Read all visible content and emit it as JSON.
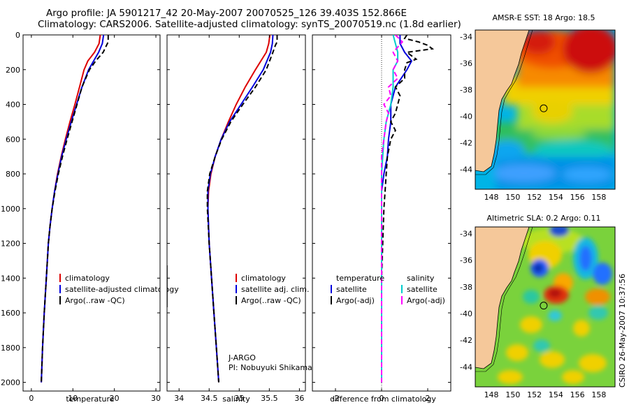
{
  "header": {
    "title_line1": "Argo profile: JA 5901217_42 20-May-2007 20070525_126 39.403S 152.866E",
    "title_line2": "Climatology: CARS2006. Satellite-adjusted climatology: synTS_20070519.nc (1.8d earlier)"
  },
  "credits": {
    "program": "J-ARGO",
    "pi": "PI: Nobuyuki Shikama",
    "stamp": "CSIRO 26-May-2007 10:37:56"
  },
  "colors": {
    "climatology": "#dd0000",
    "satellite": "#0000dd",
    "argo": "#000000",
    "temp_satellite": "#00cccc",
    "salinity_argo": "#ff00ff",
    "land": "#f5c89a"
  },
  "chart_data": [
    {
      "type": "line",
      "id": "temperature",
      "xlabel": "temperature",
      "ylabel": "",
      "xlim": [
        -2,
        31
      ],
      "ylim": [
        2050,
        0
      ],
      "x_ticks": [
        0,
        10,
        20,
        30
      ],
      "y_ticks": [
        0,
        200,
        400,
        600,
        800,
        1000,
        1200,
        1400,
        1600,
        1800,
        2000
      ],
      "legend": [
        "climatology",
        "satellite-adjusted climatology",
        "Argo(..raw -QC)"
      ],
      "series": [
        {
          "name": "climatology",
          "color": "#dd0000",
          "style": "solid",
          "depth": [
            0,
            50,
            100,
            150,
            200,
            300,
            400,
            500,
            600,
            700,
            800,
            900,
            1000,
            1100,
            1200,
            1400,
            1600,
            1800,
            2000
          ],
          "values": [
            16.6,
            16.3,
            15.2,
            13.6,
            12.7,
            11.6,
            10.5,
            9.3,
            8.2,
            7.2,
            6.3,
            5.6,
            5.0,
            4.5,
            4.1,
            3.6,
            3.1,
            2.7,
            2.4
          ]
        },
        {
          "name": "satellite-adjusted climatology",
          "color": "#0000dd",
          "style": "solid",
          "depth": [
            0,
            50,
            100,
            150,
            200,
            300,
            400,
            500,
            600,
            700,
            800,
            900,
            1000,
            1100,
            1200,
            1400,
            1600,
            1800,
            2000
          ],
          "values": [
            17.4,
            17.1,
            16.2,
            15.0,
            13.8,
            12.2,
            10.9,
            9.6,
            8.4,
            7.3,
            6.4,
            5.6,
            5.0,
            4.5,
            4.1,
            3.6,
            3.1,
            2.7,
            2.4
          ]
        },
        {
          "name": "Argo(..raw -QC)",
          "color": "#000000",
          "style": "dashed",
          "depth": [
            0,
            40,
            60,
            100,
            150,
            200,
            300,
            400,
            500,
            600,
            700,
            800,
            900,
            1000,
            1100,
            1200,
            1400,
            1600,
            1800,
            2000
          ],
          "values": [
            18.5,
            18.5,
            18.1,
            17.3,
            15.5,
            14.0,
            12.2,
            11.0,
            9.8,
            8.6,
            7.5,
            6.5,
            5.7,
            5.0,
            4.5,
            4.1,
            3.6,
            3.1,
            2.7,
            2.4
          ]
        }
      ]
    },
    {
      "type": "line",
      "id": "salinity",
      "xlabel": "salinity",
      "ylabel": "",
      "xlim": [
        33.8,
        36.1
      ],
      "ylim": [
        2050,
        0
      ],
      "x_ticks": [
        34,
        34.5,
        35,
        35.5,
        36
      ],
      "legend": [
        "climatology",
        "satellite adj. clim.",
        "Argo(..raw -QC)"
      ],
      "series": [
        {
          "name": "climatology",
          "color": "#dd0000",
          "style": "solid",
          "depth": [
            0,
            50,
            100,
            200,
            300,
            400,
            500,
            600,
            700,
            800,
            900,
            1000,
            1200,
            1400,
            1600,
            1800,
            2000
          ],
          "values": [
            35.51,
            35.49,
            35.45,
            35.27,
            35.1,
            34.95,
            34.82,
            34.7,
            34.6,
            34.53,
            34.49,
            34.48,
            34.5,
            34.54,
            34.58,
            34.62,
            34.66
          ]
        },
        {
          "name": "satellite adj. clim.",
          "color": "#0000dd",
          "style": "solid",
          "depth": [
            0,
            50,
            100,
            200,
            300,
            400,
            500,
            600,
            700,
            800,
            900,
            1000,
            1200,
            1400,
            1600,
            1800,
            2000
          ],
          "values": [
            35.56,
            35.55,
            35.52,
            35.4,
            35.22,
            35.03,
            34.84,
            34.7,
            34.6,
            34.52,
            34.48,
            34.48,
            34.5,
            34.54,
            34.58,
            34.62,
            34.66
          ]
        },
        {
          "name": "Argo(..raw -QC)",
          "color": "#000000",
          "style": "dashed",
          "depth": [
            0,
            40,
            60,
            100,
            200,
            300,
            400,
            500,
            600,
            700,
            800,
            900,
            1000,
            1200,
            1400,
            1600,
            1800,
            2000
          ],
          "values": [
            35.63,
            35.63,
            35.6,
            35.56,
            35.45,
            35.27,
            35.06,
            34.86,
            34.71,
            34.6,
            34.51,
            34.47,
            34.47,
            34.5,
            34.54,
            34.58,
            34.62,
            34.66
          ]
        }
      ]
    },
    {
      "type": "line",
      "id": "difference",
      "xlabel": "difference from climatology",
      "ylabel": "",
      "xlim": [
        -3.0,
        3.0
      ],
      "ylim": [
        2050,
        0
      ],
      "x_ticks": [
        -2,
        0,
        2
      ],
      "legend_left_title": "temperature",
      "legend_right_title": "salinity",
      "legend": [
        "satellite",
        "Argo(-adj)",
        "satellite",
        "Argo(-adj)"
      ],
      "series": [
        {
          "name": "temperature satellite",
          "color": "#0000dd",
          "style": "solid",
          "depth": [
            0,
            50,
            100,
            150,
            200,
            300,
            400,
            500,
            600,
            700,
            800,
            900,
            1000,
            1100,
            1200,
            1300,
            1400,
            1500,
            1600,
            1700,
            1800,
            1900,
            2000
          ],
          "values": [
            0.8,
            0.8,
            1.0,
            1.3,
            1.1,
            0.6,
            0.4,
            0.4,
            0.3,
            0.25,
            0.1,
            0.0,
            0.0,
            0.0,
            0.0,
            0.0,
            0.0,
            0.0,
            0.0,
            0.0,
            0.0,
            0.0,
            0.0
          ]
        },
        {
          "name": "temperature Argo(-adj)",
          "color": "#000000",
          "style": "dashed",
          "depth": [
            0,
            20,
            40,
            60,
            80,
            100,
            120,
            140,
            160,
            200,
            250,
            300,
            350,
            400,
            450,
            500,
            550,
            600,
            700,
            800,
            900,
            1000,
            1200,
            1400,
            1600,
            1800,
            2000
          ],
          "values": [
            1.1,
            1.0,
            1.6,
            2.0,
            2.2,
            1.1,
            1.3,
            1.5,
            1.1,
            1.0,
            1.0,
            0.6,
            0.8,
            0.7,
            0.6,
            0.4,
            0.6,
            0.4,
            0.25,
            0.2,
            0.15,
            0.1,
            0.05,
            0.0,
            0.0,
            0.0,
            0.0
          ]
        },
        {
          "name": "salinity satellite",
          "color": "#00cccc",
          "style": "solid",
          "depth": [
            0,
            50,
            100,
            150,
            200,
            300,
            400,
            500,
            600,
            700,
            800,
            900,
            1000,
            1200,
            1400,
            1600,
            1800,
            2000
          ],
          "values": [
            0.5,
            0.6,
            0.7,
            0.7,
            0.5,
            0.5,
            0.4,
            0.2,
            0.1,
            0.05,
            0.0,
            0.0,
            0.0,
            0.0,
            0.0,
            0.0,
            0.0,
            0.0
          ]
        },
        {
          "name": "salinity Argo(-adj)",
          "color": "#ff00ff",
          "style": "dashed",
          "depth": [
            0,
            40,
            70,
            100,
            150,
            200,
            250,
            300,
            350,
            400,
            450,
            500,
            600,
            700,
            800,
            900,
            1000,
            1200,
            1400,
            1600,
            1800,
            2000
          ],
          "values": [
            0.6,
            0.9,
            0.7,
            0.5,
            0.7,
            0.5,
            0.7,
            0.3,
            0.4,
            0.1,
            0.3,
            0.2,
            0.1,
            0.0,
            0.0,
            0.0,
            0.0,
            0.0,
            0.0,
            0.0,
            0.0,
            0.0
          ]
        }
      ]
    },
    {
      "type": "heatmap",
      "id": "sst_map",
      "title": "AMSR-E SST: 18 Argo: 18.5",
      "x_ticks": [
        148,
        150,
        152,
        154,
        156,
        158
      ],
      "y_ticks": [
        -34,
        -36,
        -38,
        -40,
        -42,
        -44
      ],
      "xlim": [
        146.5,
        159.5
      ],
      "ylim": [
        -45.5,
        -33.5
      ],
      "argo_position": {
        "lon": 152.866,
        "lat": -39.403
      },
      "argo_value": 18.5,
      "sst": 18
    },
    {
      "type": "heatmap",
      "id": "sla_map",
      "title": "Altimetric SLA: 0.2 Argo: 0.11",
      "x_ticks": [
        148,
        150,
        152,
        154,
        156,
        158
      ],
      "y_ticks": [
        -34,
        -36,
        -38,
        -40,
        -42,
        -44
      ],
      "xlim": [
        146.5,
        159.5
      ],
      "ylim": [
        -45.5,
        -33.5
      ],
      "argo_position": {
        "lon": 152.866,
        "lat": -39.403
      },
      "argo_value": 0.11,
      "sla": 0.2
    }
  ]
}
